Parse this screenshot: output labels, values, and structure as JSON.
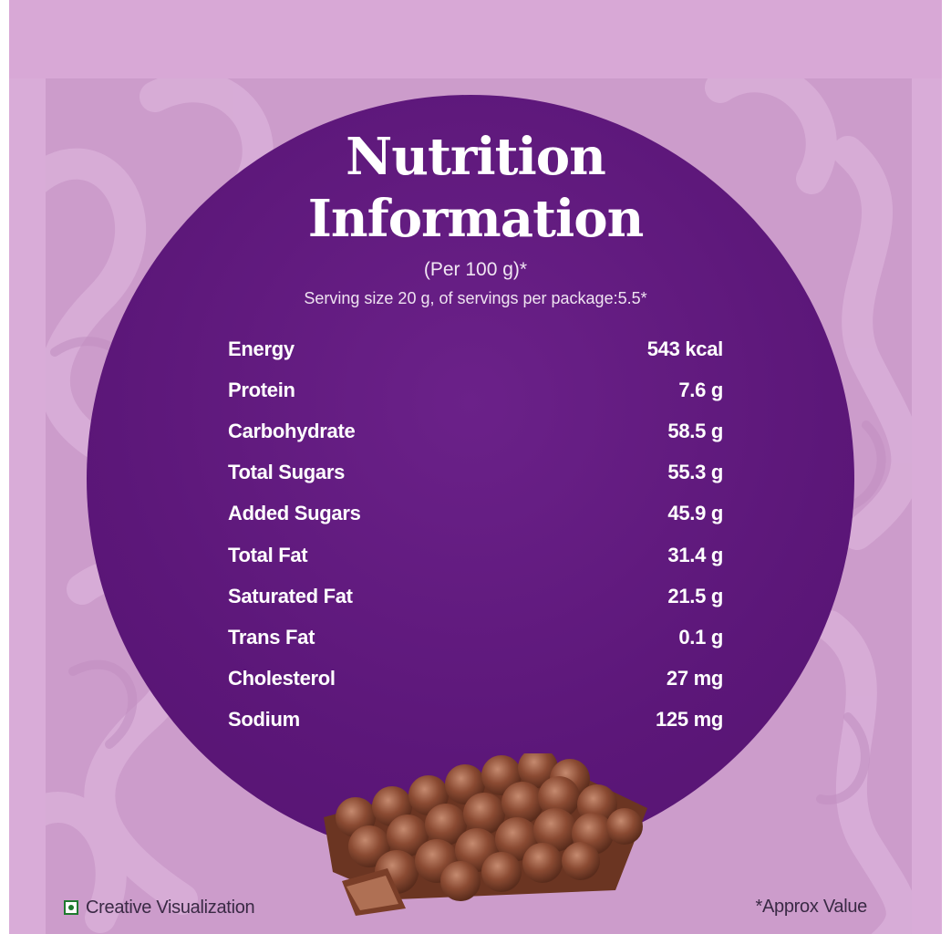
{
  "header": {
    "title_line1": "Nutrition",
    "title_line2": "Information",
    "per": "(Per 100 g)*",
    "serving": "Serving size 20 g, of servings per package:5.5*"
  },
  "nutrients": [
    {
      "name": "Energy",
      "value": "543 kcal"
    },
    {
      "name": "Protein",
      "value": "7.6 g"
    },
    {
      "name": "Carbohydrate",
      "value": "58.5 g"
    },
    {
      "name": "Total Sugars",
      "value": "55.3 g"
    },
    {
      "name": "Added Sugars",
      "value": "45.9 g"
    },
    {
      "name": "Total Fat",
      "value": "31.4 g"
    },
    {
      "name": "Saturated Fat",
      "value": "21.5 g"
    },
    {
      "name": "Trans Fat",
      "value": "0.1 g"
    },
    {
      "name": "Cholesterol",
      "value": "27 mg"
    },
    {
      "name": "Sodium",
      "value": "125 mg"
    }
  ],
  "footer": {
    "left": "Creative Visualization",
    "right": "*Approx Value",
    "veg_icon": "veg-mark-icon"
  },
  "colors": {
    "background": "#d9acd8",
    "circle": "#5c1779",
    "text": "#ffffff"
  }
}
